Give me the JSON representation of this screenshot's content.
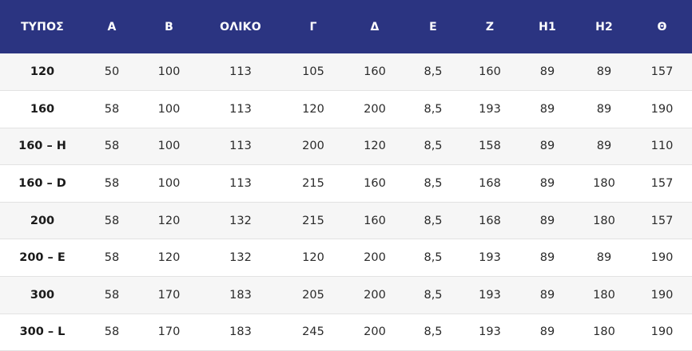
{
  "headers": [
    "ΤΥΠΟΣ",
    "Α",
    "Β",
    "ΟΛΙΚΟ",
    "Γ",
    "Δ",
    "Ε",
    "Ζ",
    "Η1",
    "Η2",
    "Θ"
  ],
  "rows": [
    [
      "120",
      "50",
      "100",
      "113",
      "105",
      "160",
      "8,5",
      "160",
      "89",
      "89",
      "157"
    ],
    [
      "160",
      "58",
      "100",
      "113",
      "120",
      "200",
      "8,5",
      "193",
      "89",
      "89",
      "190"
    ],
    [
      "160 – H",
      "58",
      "100",
      "113",
      "200",
      "120",
      "8,5",
      "158",
      "89",
      "89",
      "110"
    ],
    [
      "160 – D",
      "58",
      "100",
      "113",
      "215",
      "160",
      "8,5",
      "168",
      "89",
      "180",
      "157"
    ],
    [
      "200",
      "58",
      "120",
      "132",
      "215",
      "160",
      "8,5",
      "168",
      "89",
      "180",
      "157"
    ],
    [
      "200 – E",
      "58",
      "120",
      "132",
      "120",
      "200",
      "8,5",
      "193",
      "89",
      "89",
      "190"
    ],
    [
      "300",
      "58",
      "170",
      "183",
      "205",
      "200",
      "8,5",
      "193",
      "89",
      "180",
      "190"
    ],
    [
      "300 – L",
      "58",
      "170",
      "183",
      "245",
      "200",
      "8,5",
      "193",
      "89",
      "180",
      "190"
    ]
  ],
  "colors": {
    "header_bg": "#2b3481",
    "header_text": "#ffffff",
    "row_odd": "#f6f6f6",
    "row_even": "#ffffff"
  }
}
